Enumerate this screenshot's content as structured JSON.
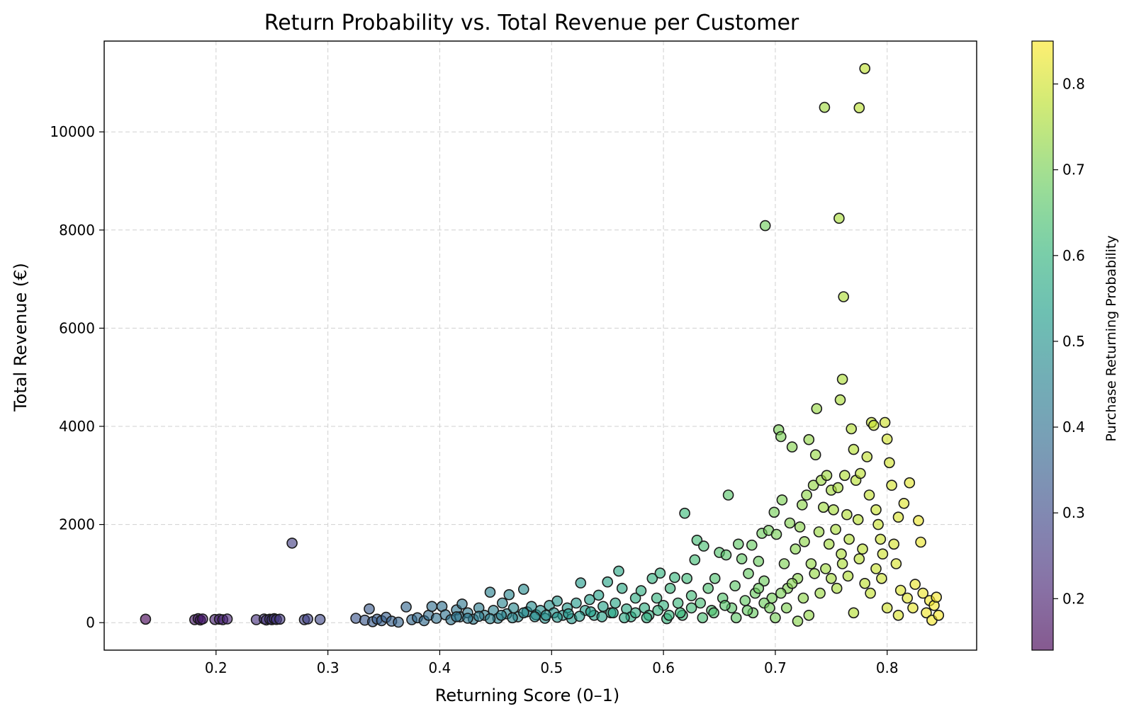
{
  "chart_data": {
    "type": "scatter",
    "title": "Return Probability vs. Total Revenue per Customer",
    "xlabel": "Returning Score (0–1)",
    "ylabel": "Total Revenue (€)",
    "xlim": [
      0.1,
      0.88
    ],
    "ylim": [
      -560,
      11850
    ],
    "xticks": [
      0.2,
      0.3,
      0.4,
      0.5,
      0.6,
      0.7,
      0.8
    ],
    "yticks": [
      0,
      2000,
      4000,
      6000,
      8000,
      10000
    ],
    "grid": true,
    "colorbar": {
      "label": "Purchase Returning Probability",
      "min": 0.14,
      "max": 0.85,
      "ticks": [
        0.2,
        0.3,
        0.4,
        0.5,
        0.6,
        0.7,
        0.8
      ],
      "colormap": "viridis"
    },
    "points": [
      [
        0.137,
        70
      ],
      [
        0.181,
        60
      ],
      [
        0.184,
        80
      ],
      [
        0.186,
        55
      ],
      [
        0.188,
        75
      ],
      [
        0.199,
        65
      ],
      [
        0.203,
        70
      ],
      [
        0.206,
        60
      ],
      [
        0.21,
        75
      ],
      [
        0.236,
        60
      ],
      [
        0.243,
        75
      ],
      [
        0.245,
        55
      ],
      [
        0.248,
        70
      ],
      [
        0.25,
        60
      ],
      [
        0.252,
        80
      ],
      [
        0.254,
        65
      ],
      [
        0.257,
        70
      ],
      [
        0.268,
        1620
      ],
      [
        0.279,
        60
      ],
      [
        0.282,
        75
      ],
      [
        0.293,
        65
      ],
      [
        0.325,
        90
      ],
      [
        0.333,
        50
      ],
      [
        0.337,
        280
      ],
      [
        0.34,
        20
      ],
      [
        0.344,
        70
      ],
      [
        0.348,
        40
      ],
      [
        0.352,
        110
      ],
      [
        0.357,
        30
      ],
      [
        0.363,
        10
      ],
      [
        0.37,
        320
      ],
      [
        0.375,
        60
      ],
      [
        0.38,
        100
      ],
      [
        0.386,
        40
      ],
      [
        0.39,
        150
      ],
      [
        0.393,
        330
      ],
      [
        0.397,
        90
      ],
      [
        0.402,
        330
      ],
      [
        0.405,
        160
      ],
      [
        0.41,
        60
      ],
      [
        0.415,
        260
      ],
      [
        0.418,
        120
      ],
      [
        0.42,
        380
      ],
      [
        0.425,
        200
      ],
      [
        0.43,
        70
      ],
      [
        0.435,
        300
      ],
      [
        0.44,
        150
      ],
      [
        0.445,
        620
      ],
      [
        0.448,
        250
      ],
      [
        0.452,
        90
      ],
      [
        0.456,
        400
      ],
      [
        0.46,
        180
      ],
      [
        0.462,
        570
      ],
      [
        0.466,
        300
      ],
      [
        0.47,
        120
      ],
      [
        0.475,
        680
      ],
      [
        0.478,
        220
      ],
      [
        0.482,
        330
      ],
      [
        0.486,
        160
      ],
      [
        0.49,
        250
      ],
      [
        0.494,
        90
      ],
      [
        0.498,
        350
      ],
      [
        0.502,
        200
      ],
      [
        0.505,
        440
      ],
      [
        0.51,
        150
      ],
      [
        0.514,
        300
      ],
      [
        0.518,
        80
      ],
      [
        0.522,
        400
      ],
      [
        0.526,
        810
      ],
      [
        0.53,
        250
      ],
      [
        0.534,
        470
      ],
      [
        0.538,
        150
      ],
      [
        0.542,
        560
      ],
      [
        0.546,
        330
      ],
      [
        0.55,
        830
      ],
      [
        0.553,
        200
      ],
      [
        0.557,
        400
      ],
      [
        0.56,
        1050
      ],
      [
        0.563,
        700
      ],
      [
        0.567,
        280
      ],
      [
        0.571,
        120
      ],
      [
        0.575,
        500
      ],
      [
        0.58,
        650
      ],
      [
        0.583,
        300
      ],
      [
        0.587,
        150
      ],
      [
        0.59,
        900
      ],
      [
        0.594,
        500
      ],
      [
        0.597,
        1010
      ],
      [
        0.6,
        350
      ],
      [
        0.603,
        80
      ],
      [
        0.606,
        700
      ],
      [
        0.61,
        920
      ],
      [
        0.613,
        400
      ],
      [
        0.617,
        150
      ],
      [
        0.619,
        2230
      ],
      [
        0.621,
        900
      ],
      [
        0.625,
        550
      ],
      [
        0.628,
        1280
      ],
      [
        0.63,
        1680
      ],
      [
        0.633,
        400
      ],
      [
        0.636,
        1560
      ],
      [
        0.64,
        700
      ],
      [
        0.643,
        250
      ],
      [
        0.646,
        900
      ],
      [
        0.65,
        1430
      ],
      [
        0.653,
        500
      ],
      [
        0.656,
        1380
      ],
      [
        0.658,
        2600
      ],
      [
        0.661,
        300
      ],
      [
        0.664,
        750
      ],
      [
        0.667,
        1600
      ],
      [
        0.67,
        1300
      ],
      [
        0.673,
        450
      ],
      [
        0.676,
        1000
      ],
      [
        0.679,
        1580
      ],
      [
        0.682,
        600
      ],
      [
        0.685,
        1250
      ],
      [
        0.688,
        1820
      ],
      [
        0.69,
        850
      ],
      [
        0.691,
        8090
      ],
      [
        0.694,
        1880
      ],
      [
        0.697,
        500
      ],
      [
        0.699,
        2250
      ],
      [
        0.701,
        1800
      ],
      [
        0.703,
        3930
      ],
      [
        0.705,
        3790
      ],
      [
        0.706,
        2500
      ],
      [
        0.708,
        1200
      ],
      [
        0.711,
        700
      ],
      [
        0.713,
        2030
      ],
      [
        0.715,
        3580
      ],
      [
        0.718,
        1500
      ],
      [
        0.72,
        900
      ],
      [
        0.722,
        1950
      ],
      [
        0.724,
        2400
      ],
      [
        0.726,
        1650
      ],
      [
        0.728,
        2600
      ],
      [
        0.73,
        3730
      ],
      [
        0.732,
        1200
      ],
      [
        0.734,
        2800
      ],
      [
        0.736,
        3420
      ],
      [
        0.737,
        4360
      ],
      [
        0.739,
        1850
      ],
      [
        0.741,
        2900
      ],
      [
        0.743,
        2350
      ],
      [
        0.744,
        10500
      ],
      [
        0.746,
        3000
      ],
      [
        0.748,
        1600
      ],
      [
        0.75,
        2700
      ],
      [
        0.752,
        2300
      ],
      [
        0.754,
        1900
      ],
      [
        0.756,
        2750
      ],
      [
        0.757,
        8240
      ],
      [
        0.758,
        4540
      ],
      [
        0.759,
        1400
      ],
      [
        0.76,
        4960
      ],
      [
        0.761,
        6640
      ],
      [
        0.762,
        3000
      ],
      [
        0.764,
        2200
      ],
      [
        0.766,
        1700
      ],
      [
        0.768,
        3950
      ],
      [
        0.77,
        3530
      ],
      [
        0.772,
        2900
      ],
      [
        0.774,
        2100
      ],
      [
        0.775,
        10490
      ],
      [
        0.776,
        3040
      ],
      [
        0.778,
        1500
      ],
      [
        0.78,
        11290
      ],
      [
        0.782,
        3380
      ],
      [
        0.784,
        2600
      ],
      [
        0.786,
        4080
      ],
      [
        0.788,
        4020
      ],
      [
        0.79,
        2300
      ],
      [
        0.792,
        2000
      ],
      [
        0.794,
        1700
      ],
      [
        0.796,
        1400
      ],
      [
        0.798,
        4080
      ],
      [
        0.8,
        3740
      ],
      [
        0.802,
        3260
      ],
      [
        0.804,
        2800
      ],
      [
        0.806,
        1600
      ],
      [
        0.808,
        1200
      ],
      [
        0.81,
        2150
      ],
      [
        0.812,
        660
      ],
      [
        0.815,
        2430
      ],
      [
        0.818,
        500
      ],
      [
        0.82,
        2850
      ],
      [
        0.823,
        300
      ],
      [
        0.825,
        780
      ],
      [
        0.828,
        2080
      ],
      [
        0.83,
        1640
      ],
      [
        0.832,
        600
      ],
      [
        0.835,
        200
      ],
      [
        0.838,
        450
      ],
      [
        0.84,
        50
      ],
      [
        0.842,
        350
      ],
      [
        0.844,
        520
      ],
      [
        0.846,
        150
      ],
      [
        0.68,
        200
      ],
      [
        0.69,
        400
      ],
      [
        0.7,
        100
      ],
      [
        0.71,
        300
      ],
      [
        0.72,
        30
      ],
      [
        0.73,
        150
      ],
      [
        0.74,
        600
      ],
      [
        0.75,
        900
      ],
      [
        0.76,
        1200
      ],
      [
        0.77,
        200
      ],
      [
        0.78,
        800
      ],
      [
        0.79,
        1100
      ],
      [
        0.8,
        300
      ],
      [
        0.81,
        150
      ],
      [
        0.765,
        950
      ],
      [
        0.775,
        1300
      ],
      [
        0.785,
        600
      ],
      [
        0.795,
        900
      ],
      [
        0.745,
        1100
      ],
      [
        0.755,
        700
      ],
      [
        0.735,
        1000
      ],
      [
        0.725,
        500
      ],
      [
        0.715,
        800
      ],
      [
        0.705,
        600
      ],
      [
        0.695,
        300
      ],
      [
        0.685,
        700
      ],
      [
        0.675,
        250
      ],
      [
        0.665,
        100
      ],
      [
        0.655,
        350
      ],
      [
        0.645,
        200
      ],
      [
        0.635,
        100
      ],
      [
        0.625,
        300
      ],
      [
        0.615,
        200
      ],
      [
        0.605,
        150
      ],
      [
        0.595,
        250
      ],
      [
        0.585,
        100
      ],
      [
        0.575,
        200
      ],
      [
        0.565,
        100
      ],
      [
        0.555,
        200
      ],
      [
        0.545,
        120
      ],
      [
        0.535,
        220
      ],
      [
        0.525,
        130
      ],
      [
        0.515,
        180
      ],
      [
        0.505,
        110
      ],
      [
        0.495,
        150
      ],
      [
        0.485,
        120
      ],
      [
        0.475,
        200
      ],
      [
        0.465,
        100
      ],
      [
        0.455,
        150
      ],
      [
        0.445,
        80
      ],
      [
        0.435,
        130
      ],
      [
        0.425,
        90
      ],
      [
        0.415,
        120
      ]
    ]
  }
}
